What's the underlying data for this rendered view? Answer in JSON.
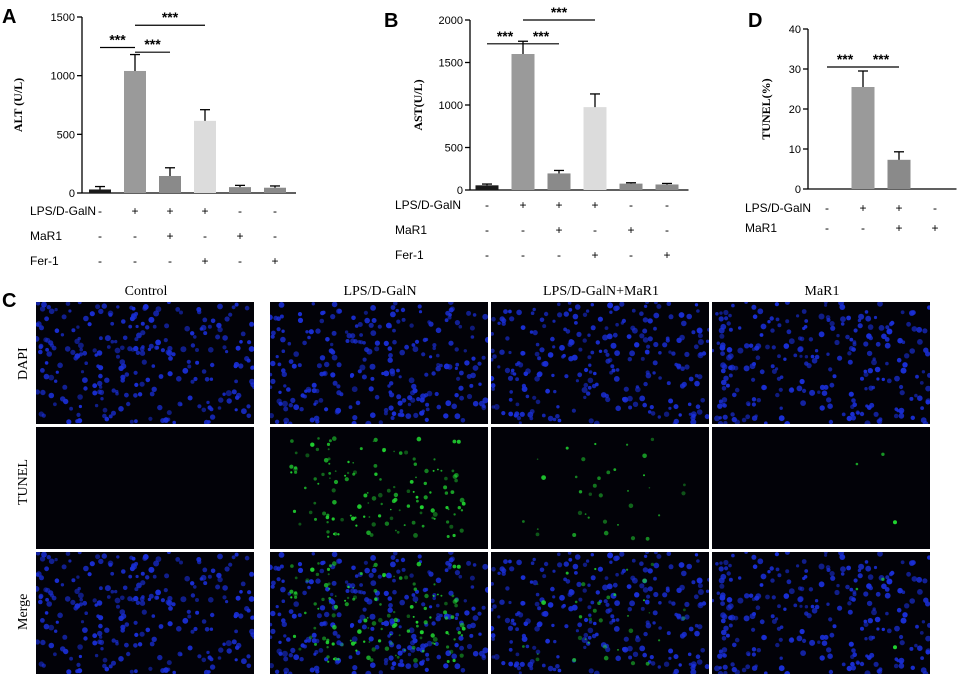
{
  "panels": {
    "A": "A",
    "B": "B",
    "C": "C",
    "D": "D"
  },
  "chart_data": [
    {
      "type": "bar",
      "panel": "A",
      "ylabel": "ALT (U/L)",
      "ylim": [
        0,
        1500
      ],
      "yticks": [
        0,
        500,
        1000,
        1500
      ],
      "values": [
        30,
        1040,
        145,
        615,
        50,
        45
      ],
      "errors": [
        25,
        140,
        70,
        95,
        15,
        15
      ],
      "colors": [
        "#1a1a1a",
        "#9a9a9a",
        "#8a8a8a",
        "#dcdcdc",
        "#8a8a8a",
        "#8a8a8a"
      ],
      "conditions": [
        {
          "label": "LPS/D-GalN",
          "signs": [
            "-",
            "+",
            "+",
            "+",
            "-",
            "-"
          ]
        },
        {
          "label": "MaR1",
          "signs": [
            "-",
            "-",
            "+",
            "-",
            "+",
            "-"
          ]
        },
        {
          "label": "Fer-1",
          "signs": [
            "-",
            "-",
            "-",
            "+",
            "-",
            "+"
          ]
        }
      ],
      "significance": [
        {
          "from": 0,
          "to": 1,
          "text": "***",
          "level": 1240
        },
        {
          "from": 1,
          "to": 2,
          "text": "***",
          "level": 1200
        },
        {
          "from": 1,
          "to": 3,
          "text": "***",
          "level": 1430
        }
      ]
    },
    {
      "type": "bar",
      "panel": "B",
      "ylabel": "AST(U/L)",
      "ylim": [
        0,
        2000
      ],
      "yticks": [
        0,
        500,
        1000,
        1500,
        2000
      ],
      "values": [
        55,
        1600,
        195,
        975,
        75,
        65
      ],
      "errors": [
        15,
        150,
        35,
        155,
        10,
        12
      ],
      "colors": [
        "#1a1a1a",
        "#9a9a9a",
        "#8a8a8a",
        "#dcdcdc",
        "#8a8a8a",
        "#8a8a8a"
      ],
      "conditions": [
        {
          "label": "LPS/D-GalN",
          "signs": [
            "-",
            "+",
            "+",
            "+",
            "-",
            "-"
          ]
        },
        {
          "label": "MaR1",
          "signs": [
            "-",
            "-",
            "+",
            "-",
            "+",
            "-"
          ]
        },
        {
          "label": "Fer-1",
          "signs": [
            "-",
            "-",
            "-",
            "+",
            "-",
            "+"
          ]
        }
      ],
      "significance": [
        {
          "from": 0,
          "to": 1,
          "text": "***",
          "level": 1720
        },
        {
          "from": 1,
          "to": 2,
          "text": "***",
          "level": 1720
        },
        {
          "from": 1,
          "to": 3,
          "text": "***",
          "level": 2000
        }
      ]
    },
    {
      "type": "bar",
      "panel": "D",
      "ylabel": "TUNEL(%)",
      "ylim": [
        0,
        40
      ],
      "yticks": [
        0,
        10,
        20,
        30,
        40
      ],
      "values": [
        0,
        25.5,
        7.3,
        0
      ],
      "errors": [
        0,
        4,
        2,
        0
      ],
      "colors": [
        "#1a1a1a",
        "#9a9a9a",
        "#8a8a8a",
        "#8a8a8a"
      ],
      "conditions": [
        {
          "label": "LPS/D-GalN",
          "signs": [
            "-",
            "+",
            "+",
            "-"
          ]
        },
        {
          "label": "MaR1",
          "signs": [
            "-",
            "-",
            "+",
            "+"
          ]
        }
      ],
      "significance": [
        {
          "from": 0,
          "to": 1,
          "text": "***",
          "level": 30.5
        },
        {
          "from": 1,
          "to": 2,
          "text": "***",
          "level": 30.5
        }
      ]
    }
  ],
  "micrographs": {
    "columns": [
      "Control",
      "LPS/D-GalN",
      "LPS/D-GalN+MaR1",
      "MaR1"
    ],
    "rows": [
      "DAPI",
      "TUNEL",
      "Merge"
    ],
    "green_density": [
      0.0,
      1.0,
      0.25,
      0.02
    ],
    "nuclei_color": "#1a2fd8",
    "tunel_color": "#22dd33"
  }
}
